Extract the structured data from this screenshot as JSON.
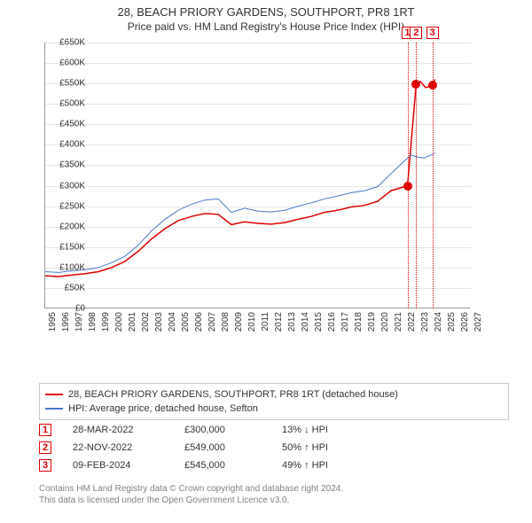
{
  "title_line1": "28, BEACH PRIORY GARDENS, SOUTHPORT, PR8 1RT",
  "title_line2": "Price paid vs. HM Land Registry's House Price Index (HPI)",
  "chart": {
    "type": "line",
    "background_color": "#ffffff",
    "grid_color": "#e5e5e5",
    "axis_color": "#999999",
    "label_fontsize": 10,
    "xlim": [
      1995,
      2027
    ],
    "ylim": [
      0,
      650000
    ],
    "ytick_step": 50000,
    "yticks": [
      "£0",
      "£50K",
      "£100K",
      "£150K",
      "£200K",
      "£250K",
      "£300K",
      "£350K",
      "£400K",
      "£450K",
      "£500K",
      "£550K",
      "£600K",
      "£650K"
    ],
    "xticks": [
      1995,
      1996,
      1997,
      1998,
      1999,
      2000,
      2001,
      2002,
      2003,
      2004,
      2005,
      2006,
      2007,
      2008,
      2009,
      2010,
      2011,
      2012,
      2013,
      2014,
      2015,
      2016,
      2017,
      2018,
      2019,
      2020,
      2021,
      2022,
      2023,
      2024,
      2025,
      2026,
      2027
    ],
    "series": [
      {
        "id": "property",
        "label": "28, BEACH PRIORY GARDENS, SOUTHPORT, PR8 1RT (detached house)",
        "color": "#e00000",
        "line_width": 1.5,
        "points": [
          [
            1995,
            80000
          ],
          [
            1996,
            78000
          ],
          [
            1997,
            82000
          ],
          [
            1998,
            85000
          ],
          [
            1999,
            90000
          ],
          [
            2000,
            100000
          ],
          [
            2001,
            115000
          ],
          [
            2002,
            140000
          ],
          [
            2003,
            170000
          ],
          [
            2004,
            195000
          ],
          [
            2005,
            215000
          ],
          [
            2006,
            225000
          ],
          [
            2007,
            232000
          ],
          [
            2008,
            230000
          ],
          [
            2009,
            205000
          ],
          [
            2010,
            212000
          ],
          [
            2011,
            208000
          ],
          [
            2012,
            206000
          ],
          [
            2013,
            210000
          ],
          [
            2014,
            218000
          ],
          [
            2015,
            225000
          ],
          [
            2016,
            235000
          ],
          [
            2017,
            240000
          ],
          [
            2018,
            248000
          ],
          [
            2019,
            252000
          ],
          [
            2020,
            262000
          ],
          [
            2021,
            288000
          ],
          [
            2022.24,
            300000
          ],
          [
            2022.89,
            549000
          ],
          [
            2023.2,
            555000
          ],
          [
            2023.6,
            540000
          ],
          [
            2024.11,
            545000
          ],
          [
            2024.3,
            560000
          ]
        ]
      },
      {
        "id": "hpi",
        "label": "HPI: Average price, detached house, Sefton",
        "color": "#4a78c8",
        "line_width": 1,
        "points": [
          [
            1995,
            90000
          ],
          [
            1996,
            88000
          ],
          [
            1997,
            92000
          ],
          [
            1998,
            95000
          ],
          [
            1999,
            100000
          ],
          [
            2000,
            112000
          ],
          [
            2001,
            128000
          ],
          [
            2002,
            155000
          ],
          [
            2003,
            190000
          ],
          [
            2004,
            218000
          ],
          [
            2005,
            240000
          ],
          [
            2006,
            255000
          ],
          [
            2007,
            265000
          ],
          [
            2008,
            268000
          ],
          [
            2009,
            235000
          ],
          [
            2010,
            245000
          ],
          [
            2011,
            238000
          ],
          [
            2012,
            236000
          ],
          [
            2013,
            240000
          ],
          [
            2014,
            250000
          ],
          [
            2015,
            258000
          ],
          [
            2016,
            268000
          ],
          [
            2017,
            275000
          ],
          [
            2018,
            283000
          ],
          [
            2019,
            288000
          ],
          [
            2020,
            298000
          ],
          [
            2021,
            330000
          ],
          [
            2022,
            360000
          ],
          [
            2022.5,
            375000
          ],
          [
            2023,
            370000
          ],
          [
            2023.5,
            368000
          ],
          [
            2024,
            375000
          ],
          [
            2024.3,
            380000
          ]
        ]
      }
    ],
    "event_markers": [
      {
        "n": "1",
        "year": 2022.24,
        "price": 300000
      },
      {
        "n": "2",
        "year": 2022.89,
        "price": 549000
      },
      {
        "n": "3",
        "year": 2024.11,
        "price": 545000
      }
    ],
    "marker_color": "#e00000",
    "marker_box_top_y": -18
  },
  "legend": {
    "border_color": "#c8c8c8",
    "items": [
      {
        "color": "#e00000",
        "label": "28, BEACH PRIORY GARDENS, SOUTHPORT, PR8 1RT (detached house)"
      },
      {
        "color": "#4a78c8",
        "label": "HPI: Average price, detached house, Sefton"
      }
    ]
  },
  "events": [
    {
      "n": "1",
      "date": "28-MAR-2022",
      "price": "£300,000",
      "pct": "13% ↓ HPI"
    },
    {
      "n": "2",
      "date": "22-NOV-2022",
      "price": "£549,000",
      "pct": "50% ↑ HPI"
    },
    {
      "n": "3",
      "date": "09-FEB-2024",
      "price": "£545,000",
      "pct": "49% ↑ HPI"
    }
  ],
  "footer_line1": "Contains HM Land Registry data © Crown copyright and database right 2024.",
  "footer_line2": "This data is licensed under the Open Government Licence v3.0."
}
